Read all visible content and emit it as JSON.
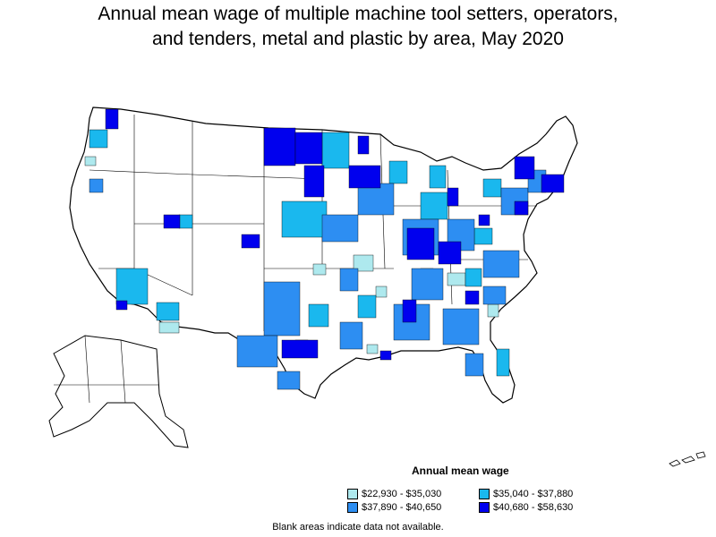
{
  "title": {
    "line1": "Annual mean wage of multiple machine tool setters, operators,",
    "line2": "and tenders, metal and plastic by area, May 2020"
  },
  "legend": {
    "title": "Annual mean wage",
    "items": [
      {
        "label": "$22,930 - $35,030",
        "color": "#aee9ee"
      },
      {
        "label": "$35,040 - $37,880",
        "color": "#1ab8ee"
      },
      {
        "label": "$37,890 - $40,650",
        "color": "#2d8ef2"
      },
      {
        "label": "$40,680 - $58,630",
        "color": "#0000ee"
      }
    ]
  },
  "footnote": "Blank areas indicate data not available.",
  "colors": {
    "outline": "#000000",
    "no_data": "#ffffff"
  }
}
